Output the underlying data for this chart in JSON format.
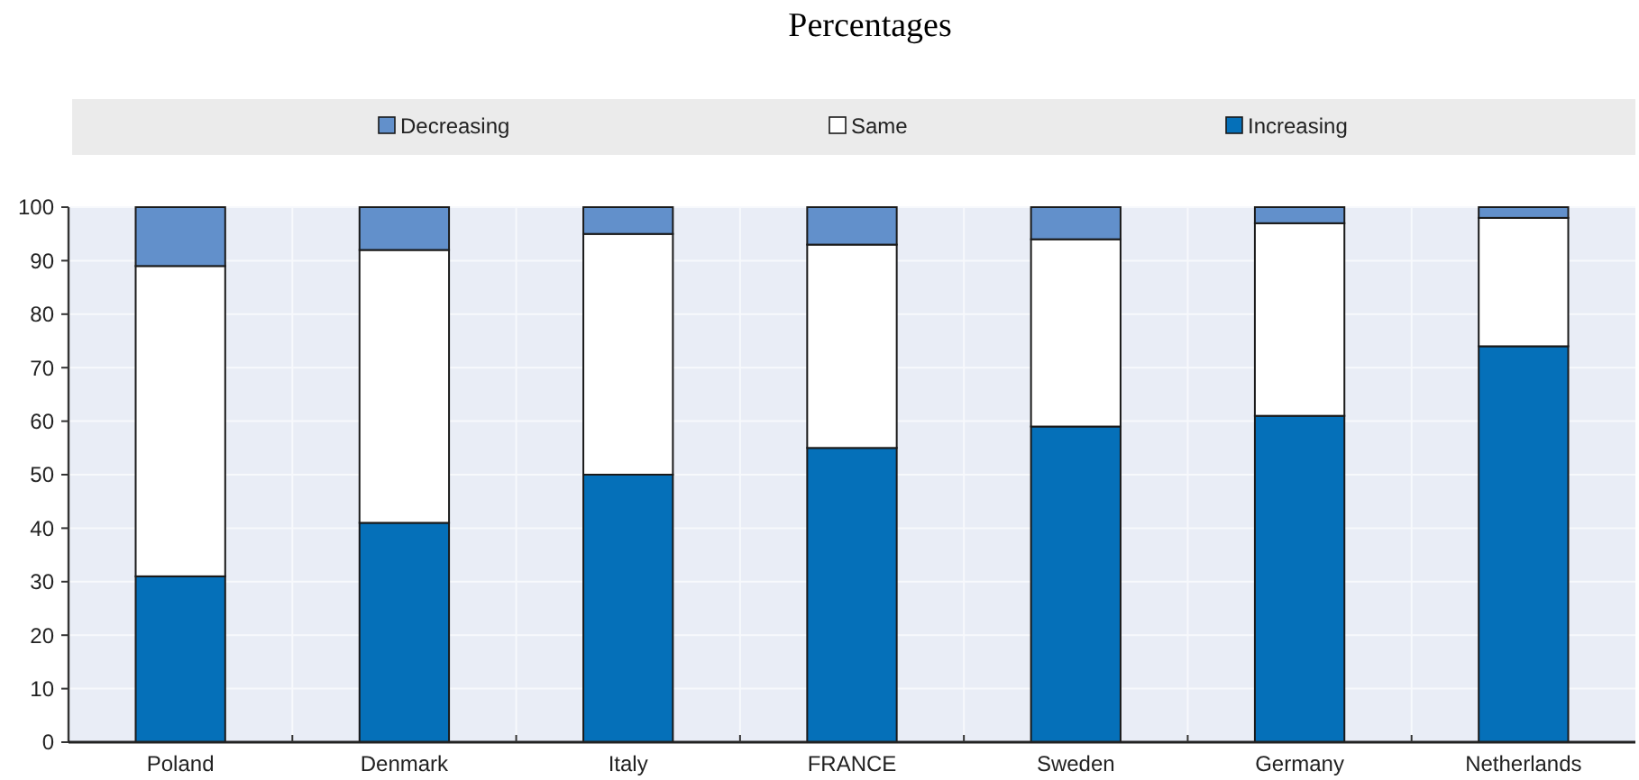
{
  "chart_data": {
    "type": "bar",
    "title": "Percentages",
    "stacked": true,
    "categories": [
      "Poland",
      "Denmark",
      "Italy",
      "FRANCE",
      "Sweden",
      "Germany",
      "Netherlands"
    ],
    "series": [
      {
        "name": "Increasing",
        "color": "#0570b9",
        "values": [
          31,
          41,
          50,
          55,
          59,
          61,
          74
        ]
      },
      {
        "name": "Same",
        "color": "#ffffff",
        "values": [
          58,
          51,
          45,
          38,
          35,
          36,
          24
        ]
      },
      {
        "name": "Decreasing",
        "color": "#6290cb",
        "values": [
          11,
          8,
          5,
          7,
          6,
          3,
          2
        ]
      }
    ],
    "ylim": [
      0,
      100
    ],
    "yticks": [
      0,
      10,
      20,
      30,
      40,
      50,
      60,
      70,
      80,
      90,
      100
    ],
    "grid": true,
    "legend": "top"
  }
}
